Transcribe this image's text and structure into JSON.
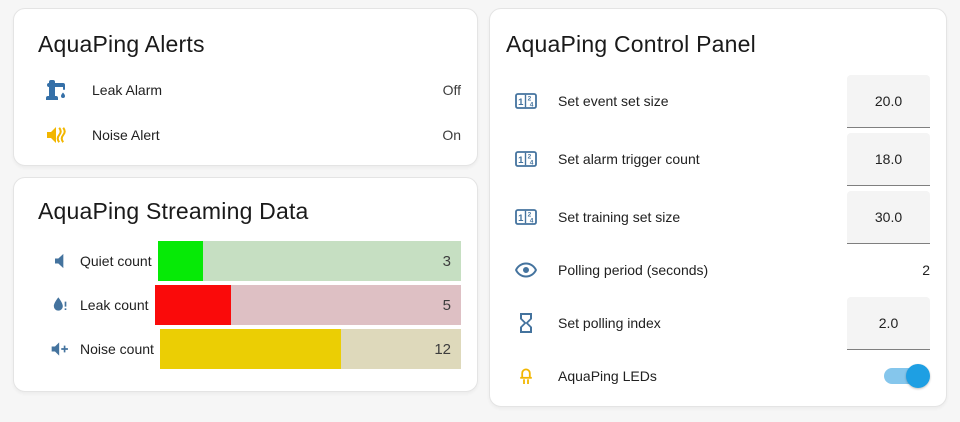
{
  "alerts_card": {
    "title": "AquaPing Alerts",
    "rows": [
      {
        "label": "Leak Alarm",
        "state": "Off",
        "icon": "water-pump-icon"
      },
      {
        "label": "Noise Alert",
        "state": "On",
        "icon": "volume-vibrate-icon"
      }
    ]
  },
  "streaming_card": {
    "title": "AquaPing Streaming Data",
    "bars": [
      {
        "label": "Quiet count",
        "value": 3,
        "max": 20,
        "fill_color": "#06ea06",
        "track_color": "#c6dfc2",
        "icon": "volume-mute-icon"
      },
      {
        "label": "Leak count",
        "value": 5,
        "max": 20,
        "fill_color": "#fa0a0a",
        "track_color": "#dec0c4",
        "icon": "water-alert-icon"
      },
      {
        "label": "Noise count",
        "value": 12,
        "max": 20,
        "fill_color": "#ebce04",
        "track_color": "#ded9bb",
        "icon": "volume-plus-icon"
      }
    ]
  },
  "control_card": {
    "title": "AquaPing Control Panel",
    "rows": [
      {
        "label": "Set event set size",
        "value": "20.0",
        "control": "number-box",
        "icon": "counter-icon"
      },
      {
        "label": "Set alarm trigger count",
        "value": "18.0",
        "control": "number-box",
        "icon": "counter-icon"
      },
      {
        "label": "Set training set size",
        "value": "30.0",
        "control": "number-box",
        "icon": "counter-icon"
      },
      {
        "label": "Polling period (seconds)",
        "value": "2",
        "control": "text",
        "icon": "eye-icon"
      },
      {
        "label": "Set polling index",
        "value": "2.0",
        "control": "number-box",
        "icon": "timer-sand-icon"
      },
      {
        "label": "AquaPing LEDs",
        "state": "on",
        "control": "toggle",
        "icon": "led-icon"
      }
    ]
  },
  "theme": {
    "page_bg": "#f6f6f6",
    "card_bg": "#ffffff",
    "icon_blue": "#44739e",
    "leak_pump_blue": "#3570a8",
    "active_amber": "#f2b600",
    "toggle_track": "#85c6ec",
    "toggle_thumb": "#1e9fe3",
    "input_bg": "#f4f4f4",
    "text_primary": "#212121"
  }
}
